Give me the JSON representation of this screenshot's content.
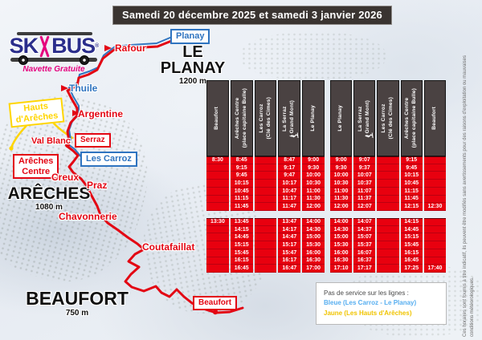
{
  "banner": {
    "title": "Samedi 20 décembre 2025 et samedi 3 janvier 2026"
  },
  "logo": {
    "ski": "SK",
    "bus": "BUS",
    "registered": "®",
    "subtitle": "Navette Gratuite"
  },
  "map": {
    "towns": {
      "leplanay": {
        "name": "LE PLANAY",
        "elev": "1200 m"
      },
      "areches": {
        "name": "ARÊCHES",
        "elev": "1080 m"
      },
      "beaufort": {
        "name": "BEAUFORT",
        "elev": "750 m"
      }
    },
    "stops": {
      "planay": "Planay",
      "rafour": "Rafour",
      "thuile": "Thuile",
      "hauts": "Hauts\nd'Arêches",
      "argentine": "Argentine",
      "val_blanc": "Val Blanc",
      "serraz": "Serraz",
      "les_carroz": "Les Carroz",
      "areches_centre": "Arêches\nCentre",
      "creux": "Creux",
      "praz": "Praz",
      "chavonnerie": "Chavonnerie",
      "coutafaillat": "Coutafaillat",
      "beaufort": "Beaufort"
    }
  },
  "timetables": [
    {
      "headers": [
        "Beaufort",
        "Arêches Centre\n(place capitaine Bulle)",
        "Les Carroz\n(Clé des Cimes)",
        "La Serraz\n(    Grand Mont)",
        "Le Planay"
      ],
      "icon_columns": [
        3
      ],
      "morning": [
        [
          "8:30",
          "8:45",
          "",
          "8:47",
          "9:00"
        ],
        [
          "",
          "9:15",
          "",
          "9:17",
          "9:30"
        ],
        [
          "",
          "9:45",
          "",
          "9:47",
          "10:00"
        ],
        [
          "",
          "10:15",
          "",
          "10:17",
          "10:30"
        ],
        [
          "",
          "10:45",
          "",
          "10:47",
          "11:00"
        ],
        [
          "",
          "11:15",
          "",
          "11:17",
          "11:30"
        ],
        [
          "",
          "11:45",
          "",
          "11:47",
          "12:00"
        ]
      ],
      "afternoon": [
        [
          "13:30",
          "13:45",
          "",
          "13:47",
          "14:00"
        ],
        [
          "",
          "14:15",
          "",
          "14:17",
          "14:30"
        ],
        [
          "",
          "14:45",
          "",
          "14:47",
          "15:00"
        ],
        [
          "",
          "15:15",
          "",
          "15:17",
          "15:30"
        ],
        [
          "",
          "15:45",
          "",
          "15:47",
          "16:00"
        ],
        [
          "",
          "16:15",
          "",
          "16:17",
          "16:30"
        ],
        [
          "",
          "16:45",
          "",
          "16:47",
          "17:00"
        ]
      ]
    },
    {
      "headers": [
        "Le Planay",
        "La Serraz\n(    Grand Mont)",
        "Les Carroz\n(Clé des Cimes)",
        "Arêches Centre\n(place capitaine Bulle)",
        "Beaufort"
      ],
      "icon_columns": [
        1
      ],
      "morning": [
        [
          "9:00",
          "9:07",
          "",
          "9:15",
          ""
        ],
        [
          "9:30",
          "9:37",
          "",
          "9:45",
          ""
        ],
        [
          "10:00",
          "10:07",
          "",
          "10:15",
          ""
        ],
        [
          "10:30",
          "10:37",
          "",
          "10:45",
          ""
        ],
        [
          "11:00",
          "11:07",
          "",
          "11:15",
          ""
        ],
        [
          "11:30",
          "11:37",
          "",
          "11:45",
          ""
        ],
        [
          "12:00",
          "12:07",
          "",
          "12:15",
          "12:30"
        ]
      ],
      "afternoon": [
        [
          "14:00",
          "14:07",
          "",
          "14:15",
          ""
        ],
        [
          "14:30",
          "14:37",
          "",
          "14:45",
          ""
        ],
        [
          "15:00",
          "15:07",
          "",
          "15:15",
          ""
        ],
        [
          "15:30",
          "15:37",
          "",
          "15:45",
          ""
        ],
        [
          "16:00",
          "16:07",
          "",
          "16:15",
          ""
        ],
        [
          "16:30",
          "16:37",
          "",
          "16:45",
          ""
        ],
        [
          "17:10",
          "17:17",
          "",
          "17:25",
          "17:40"
        ]
      ]
    }
  ],
  "note": {
    "heading": "Pas de service sur les lignes :",
    "line_blue": "Bleue (Les Carroz - Le Planay)",
    "line_yellow": "Jaune (Les Hauts d'Arêches)"
  },
  "disclaimer": "Ces horaires sont fournis à titre indicatif, ils peuvent être modifiés sans avertissements pour des raisons d'exploitation ou mauvaises\nconditions météorologiques.",
  "colors": {
    "route_red": "#e30613",
    "line_blue": "#2f74c0",
    "line_yellow": "#ffd500",
    "table_red": "#e8000f",
    "table_header_gray": "#4a4242",
    "logo_blue": "#2b2e8c",
    "logo_pink": "#e5007d"
  }
}
